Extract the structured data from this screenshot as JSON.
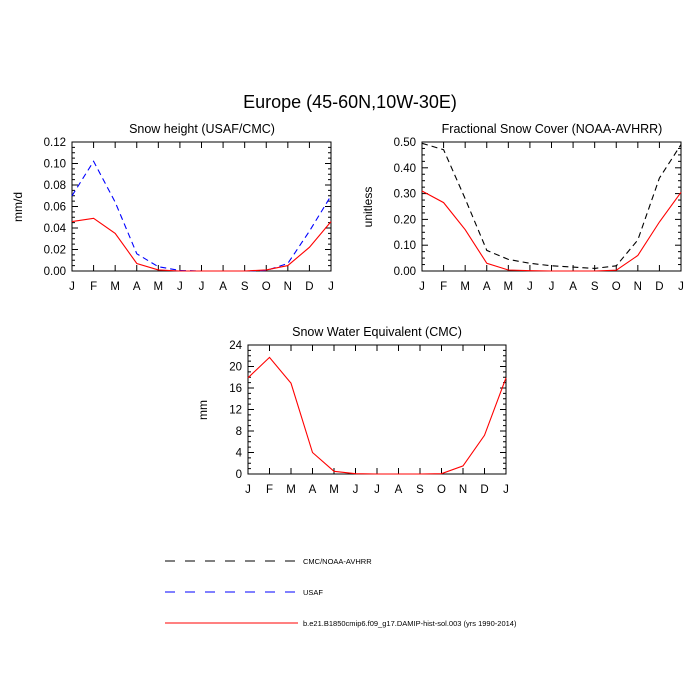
{
  "figure": {
    "title": "Europe (45-60N,10W-30E)"
  },
  "chart_data": [
    {
      "type": "line",
      "title": "Snow height (USAF/CMC)",
      "xlabel": "",
      "ylabel": "mm/d",
      "categories": [
        "J",
        "F",
        "M",
        "A",
        "M",
        "J",
        "J",
        "A",
        "S",
        "O",
        "N",
        "D",
        "J"
      ],
      "ylim": [
        0,
        0.12
      ],
      "yticks": [
        "0.00",
        "0.02",
        "0.04",
        "0.06",
        "0.08",
        "0.10",
        "0.12"
      ],
      "yticks_values": [
        0,
        0.02,
        0.04,
        0.06,
        0.08,
        0.1,
        0.12
      ],
      "series": [
        {
          "name": "USAF",
          "color": "#0000ff",
          "dash": "dashed",
          "values": [
            0.07,
            0.102,
            0.064,
            0.016,
            0.004,
            0.0005,
            0.0,
            0.0,
            0.0,
            0.0005,
            0.007,
            0.037,
            0.07
          ]
        },
        {
          "name": "b.e21.B1850cmip6.f09_g17.DAMIP-hist-sol.003 (yrs 1990-2014)",
          "color": "#ff0000",
          "dash": "solid",
          "values": [
            0.046,
            0.049,
            0.035,
            0.007,
            0.001,
            0.0,
            0.0,
            0.0,
            0.0,
            0.001,
            0.005,
            0.022,
            0.046
          ]
        }
      ]
    },
    {
      "type": "line",
      "title": "Fractional Snow Cover (NOAA-AVHRR)",
      "xlabel": "",
      "ylabel": "unitless",
      "categories": [
        "J",
        "F",
        "M",
        "A",
        "M",
        "J",
        "J",
        "A",
        "S",
        "O",
        "N",
        "D",
        "J"
      ],
      "ylim": [
        0,
        0.5
      ],
      "yticks": [
        "0.00",
        "0.10",
        "0.20",
        "0.30",
        "0.40",
        "0.50"
      ],
      "yticks_values": [
        0,
        0.1,
        0.2,
        0.3,
        0.4,
        0.5
      ],
      "series": [
        {
          "name": "CMC/NOAA-AVHRR",
          "color": "#000000",
          "dash": "dashed",
          "values": [
            0.495,
            0.47,
            0.28,
            0.08,
            0.045,
            0.03,
            0.02,
            0.015,
            0.01,
            0.02,
            0.12,
            0.36,
            0.49
          ]
        },
        {
          "name": "b.e21.B1850cmip6.f09_g17.DAMIP-hist-sol.003 (yrs 1990-2014)",
          "color": "#ff0000",
          "dash": "solid",
          "values": [
            0.31,
            0.265,
            0.16,
            0.03,
            0.004,
            0.001,
            0.0,
            0.0,
            0.0,
            0.003,
            0.06,
            0.19,
            0.305
          ]
        }
      ]
    },
    {
      "type": "line",
      "title": "Snow Water Equivalent (CMC)",
      "xlabel": "",
      "ylabel": "mm",
      "categories": [
        "J",
        "F",
        "M",
        "A",
        "M",
        "J",
        "J",
        "A",
        "S",
        "O",
        "N",
        "D",
        "J"
      ],
      "ylim": [
        0,
        24
      ],
      "yticks": [
        "0",
        "4",
        "8",
        "12",
        "16",
        "20",
        "24"
      ],
      "yticks_values": [
        0,
        4,
        8,
        12,
        16,
        20,
        24
      ],
      "series": [
        {
          "name": "CMC/NOAA-AVHRR",
          "color": "#000000",
          "dash": "dashed",
          "values": [
            0,
            0,
            0,
            0,
            0,
            0,
            0,
            0,
            0,
            0,
            0,
            0,
            0
          ]
        },
        {
          "name": "b.e21.B1850cmip6.f09_g17.DAMIP-hist-sol.003 (yrs 1990-2014)",
          "color": "#ff0000",
          "dash": "solid",
          "values": [
            17.9,
            21.7,
            16.9,
            4.0,
            0.5,
            0.05,
            0.0,
            0.0,
            0.0,
            0.05,
            1.5,
            7.2,
            17.9
          ]
        }
      ]
    }
  ],
  "legend": {
    "placement": "bottom",
    "items": [
      {
        "label": "CMC/NOAA-AVHRR",
        "color": "#000000",
        "dash": "dashed"
      },
      {
        "label": "USAF",
        "color": "#0000ff",
        "dash": "dashed"
      },
      {
        "label": "b.e21.B1850cmip6.f09_g17.DAMIP-hist-sol.003 (yrs 1990-2014)",
        "color": "#ff0000",
        "dash": "solid"
      }
    ]
  }
}
